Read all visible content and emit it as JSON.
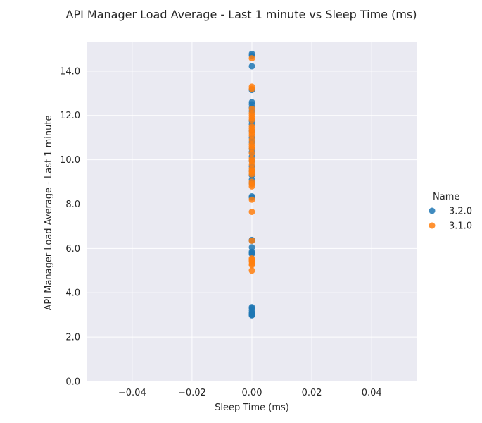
{
  "chart_data": {
    "type": "scatter",
    "title": "API Manager Load Average - Last 1 minute vs Sleep Time (ms)",
    "xlabel": "Sleep Time (ms)",
    "ylabel": "API Manager Load Average - Last 1 minute",
    "xlim": [
      -0.055,
      0.055
    ],
    "ylim": [
      0,
      15.3
    ],
    "x_ticks": [
      "−0.04",
      "−0.02",
      "0.00",
      "0.02",
      "0.04"
    ],
    "x_tick_values": [
      -0.04,
      -0.02,
      0.0,
      0.02,
      0.04
    ],
    "y_ticks": [
      "0.0",
      "2.0",
      "4.0",
      "6.0",
      "8.0",
      "10.0",
      "12.0",
      "14.0"
    ],
    "y_tick_values": [
      0,
      2,
      4,
      6,
      8,
      10,
      12,
      14
    ],
    "grid": true,
    "background": "#eaeaf2",
    "legend": {
      "title": "Name",
      "placement": "right"
    },
    "series": [
      {
        "name": "3.2.0",
        "color": "#1f77b4",
        "x": [
          0,
          0,
          0,
          0,
          0,
          0,
          0,
          0,
          0,
          0,
          0,
          0,
          0,
          0,
          0,
          0,
          0,
          0,
          0,
          0,
          0,
          0,
          0,
          0,
          0,
          0,
          0,
          0,
          0,
          0,
          0,
          0,
          0,
          0,
          0,
          0,
          0
        ],
        "y": [
          14.78,
          14.7,
          14.22,
          13.15,
          12.6,
          12.5,
          12.35,
          12.2,
          11.75,
          11.6,
          11.3,
          11.0,
          10.8,
          10.5,
          10.35,
          10.15,
          9.95,
          9.7,
          9.5,
          9.3,
          9.1,
          8.95,
          8.35,
          8.3,
          6.38,
          6.35,
          6.05,
          5.85,
          5.8,
          5.75,
          3.35,
          3.3,
          3.2,
          3.1,
          3.05,
          3.0,
          2.98
        ]
      },
      {
        "name": "3.1.0",
        "color": "#ff7f0e",
        "x": [
          0,
          0,
          0,
          0,
          0,
          0,
          0,
          0,
          0,
          0,
          0,
          0,
          0,
          0,
          0,
          0,
          0,
          0,
          0,
          0,
          0,
          0,
          0,
          0,
          0,
          0,
          0,
          0,
          0,
          0,
          0,
          0,
          0,
          0,
          0,
          0,
          0,
          0
        ],
        "y": [
          14.58,
          13.3,
          13.2,
          12.3,
          12.1,
          12.0,
          11.9,
          11.8,
          11.5,
          11.4,
          11.3,
          11.2,
          11.1,
          10.9,
          10.7,
          10.6,
          10.5,
          10.3,
          10.05,
          9.95,
          9.8,
          9.6,
          9.5,
          9.45,
          9.35,
          9.0,
          8.9,
          8.8,
          8.2,
          7.65,
          6.35,
          5.55,
          5.5,
          5.45,
          5.4,
          5.3,
          5.25,
          5.0
        ]
      }
    ]
  }
}
